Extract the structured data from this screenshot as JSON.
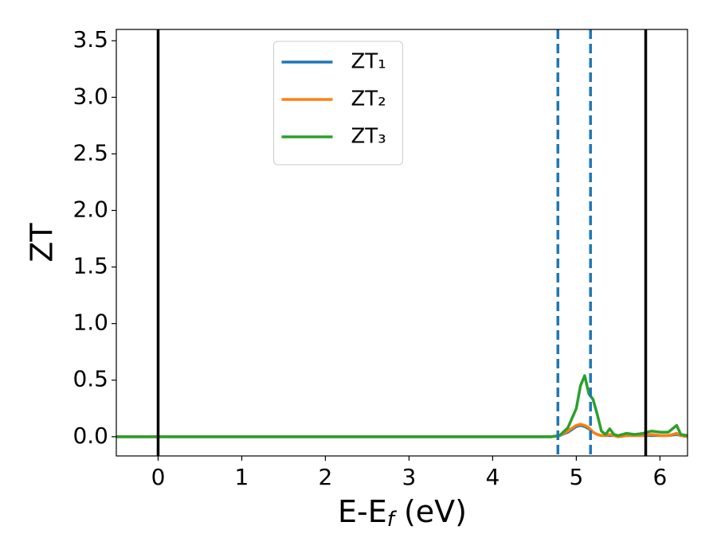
{
  "chart_data": {
    "type": "line",
    "ylabel": "ZT",
    "xlabel": [
      {
        "text": "E-E"
      },
      {
        "text": "f",
        "sub": true
      },
      {
        "text": " (eV)"
      }
    ],
    "x": [
      -0.5,
      4.7,
      4.8,
      4.9,
      5.0,
      5.05,
      5.1,
      5.15,
      5.2,
      5.25,
      5.3,
      5.35,
      5.4,
      5.45,
      5.5,
      5.6,
      5.7,
      5.8,
      5.9,
      6.0,
      6.1,
      6.2,
      6.25,
      6.33
    ],
    "series": [
      {
        "name": "ZT₁",
        "color": "#1f77b4",
        "values": [
          0,
          0,
          0.01,
          0.04,
          0.09,
          0.1,
          0.09,
          0.07,
          0.04,
          0.02,
          0.01,
          0.01,
          0.01,
          0.01,
          0,
          0.01,
          0.01,
          0.01,
          0.01,
          0.01,
          0.01,
          0.02,
          0.01,
          0
        ]
      },
      {
        "name": "ZT₂",
        "color": "#ff7f0e",
        "values": [
          0,
          0,
          0.01,
          0.05,
          0.1,
          0.11,
          0.1,
          0.08,
          0.04,
          0.02,
          0.01,
          0.01,
          0.02,
          0.01,
          0,
          0.01,
          0.01,
          0.01,
          0.02,
          0.01,
          0.01,
          0.03,
          0.01,
          0
        ]
      },
      {
        "name": "ZT₃",
        "color": "#2ca02c",
        "values": [
          0,
          0,
          0.01,
          0.08,
          0.25,
          0.45,
          0.54,
          0.38,
          0.33,
          0.2,
          0.05,
          0.02,
          0.07,
          0.02,
          0.01,
          0.03,
          0.02,
          0.03,
          0.05,
          0.04,
          0.04,
          0.1,
          0.02,
          0.01
        ]
      }
    ],
    "vlines": [
      {
        "x": 0,
        "color": "#000000",
        "dashed": false
      },
      {
        "x": 4.78,
        "color": "#1f77b4",
        "dashed": true
      },
      {
        "x": 5.17,
        "color": "#1f77b4",
        "dashed": true
      },
      {
        "x": 5.83,
        "color": "#000000",
        "dashed": false
      }
    ],
    "xlim": [
      -0.5,
      6.33
    ],
    "ylim": [
      -0.17,
      3.6
    ],
    "xticks": [
      0,
      1,
      2,
      3,
      4,
      5,
      6
    ],
    "yticks": [
      {
        "value": 0,
        "label": "0.0"
      },
      0.5,
      {
        "value": 1,
        "label": "1.0"
      },
      1.5,
      {
        "value": 2,
        "label": "2.0"
      },
      2.5,
      {
        "value": 3,
        "label": "3.0"
      },
      3.5
    ],
    "legend": "upper center",
    "grid": false
  }
}
